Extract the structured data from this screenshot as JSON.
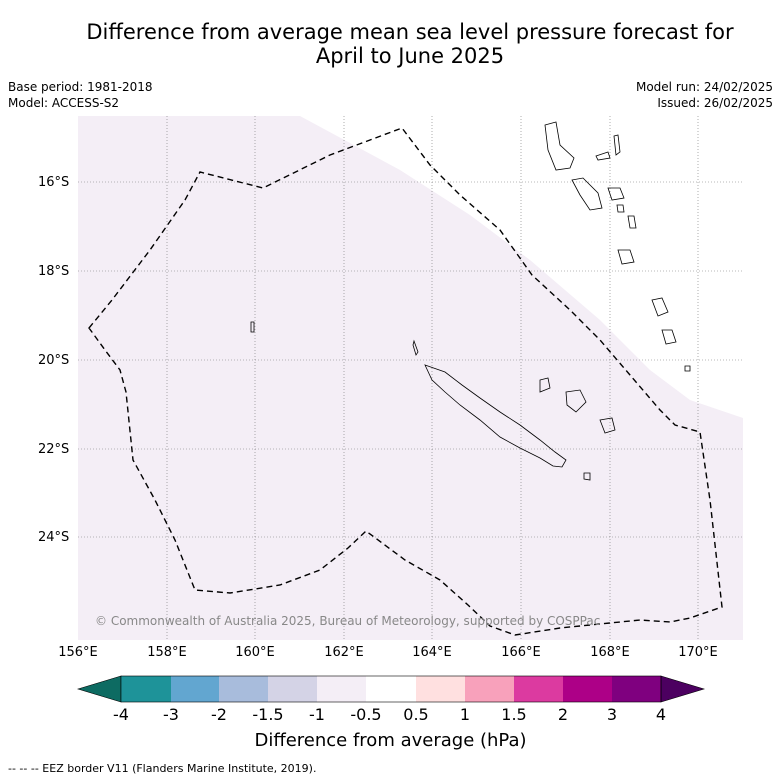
{
  "title_line1": "Difference from average mean sea level pressure forecast for",
  "title_line2": "April to June 2025",
  "base_period": "Base period: 1981-2018",
  "model": "Model: ACCESS-S2",
  "model_run": "Model run: 24/02/2025",
  "issued": "Issued: 26/02/2025",
  "lat_labels": [
    "16°S",
    "18°S",
    "20°S",
    "22°S",
    "24°S"
  ],
  "lon_labels": [
    "156°E",
    "158°E",
    "160°E",
    "162°E",
    "164°E",
    "166°E",
    "168°E",
    "170°E"
  ],
  "copyright": "© Commonwealth of Australia 2025, Bureau of Meteorology, supported by COSPPac",
  "colorbar": {
    "title": "Difference from average (hPa)",
    "tick_labels": [
      "-4",
      "-3",
      "-2",
      "-1.5",
      "-1",
      "-0.5",
      "0.5",
      "1",
      "1.5",
      "2",
      "3",
      "4"
    ],
    "colors": [
      "#0d6b62",
      "#1e9399",
      "#62a6d0",
      "#a8bcdc",
      "#d4d3e6",
      "#f4eef6",
      "#ffffff",
      "#ffe0e0",
      "#f8a1bb",
      "#dc3aa0",
      "#ad0087",
      "#7f007f",
      "#4c0060"
    ]
  },
  "eez_note": "-- -- -- EEZ border V11 (Flanders Marine Institute, 2019)."
}
